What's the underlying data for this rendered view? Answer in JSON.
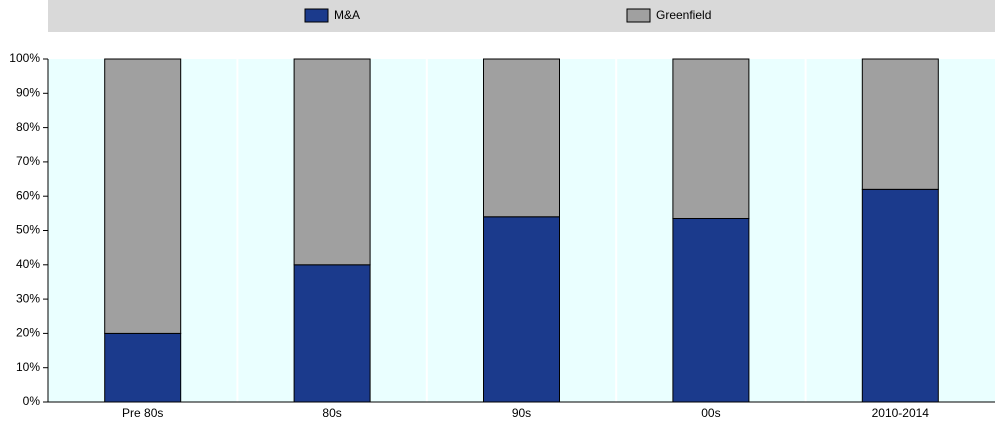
{
  "chart_data": {
    "type": "stacked-bar",
    "categories": [
      "Pre 80s",
      "80s",
      "90s",
      "00s",
      "2010-2014"
    ],
    "series": [
      {
        "name": "M&A",
        "color": "#1b3a8c",
        "values": [
          20,
          40,
          54,
          53.5,
          62
        ]
      },
      {
        "name": "Greenfield",
        "color": "#a0a0a0",
        "values": [
          80,
          60,
          46,
          46.5,
          38
        ]
      }
    ],
    "ylim": [
      0,
      100
    ],
    "yticks": [
      {
        "value": 0,
        "label": "0%"
      },
      {
        "value": 10,
        "label": "10%"
      },
      {
        "value": 20,
        "label": "20%"
      },
      {
        "value": 30,
        "label": "30%"
      },
      {
        "value": 40,
        "label": "40%"
      },
      {
        "value": 50,
        "label": "50%"
      },
      {
        "value": 60,
        "label": "60%"
      },
      {
        "value": 70,
        "label": "70%"
      },
      {
        "value": 80,
        "label": "80%"
      },
      {
        "value": 90,
        "label": "90%"
      },
      {
        "value": 100,
        "label": "100%"
      }
    ],
    "legend": "top"
  }
}
